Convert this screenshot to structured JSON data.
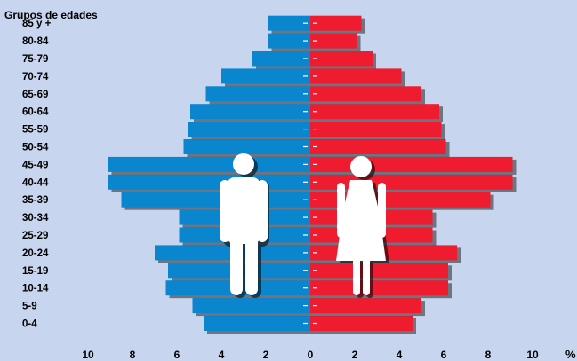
{
  "chart_data": {
    "type": "bar",
    "orientation": "horizontal",
    "layout": "population-pyramid",
    "ylabel": "Grupos de edades",
    "xlabel": "%",
    "categories": [
      "0-4",
      "5-9",
      "10-14",
      "15-19",
      "20-24",
      "25-29",
      "30-34",
      "35-39",
      "40-44",
      "45-49",
      "50-54",
      "55-59",
      "60-64",
      "65-69",
      "70-74",
      "75-79",
      "80-84",
      "85 y +"
    ],
    "series": [
      {
        "values": [
          4.8,
          5.3,
          6.5,
          6.4,
          7.0,
          5.9,
          5.9,
          8.5,
          9.1,
          9.1,
          5.7,
          5.5,
          5.4,
          4.7,
          4.0,
          2.6,
          1.9,
          1.9
        ],
        "color": "#0a86cf",
        "side": "left"
      },
      {
        "values": [
          4.6,
          5.0,
          6.2,
          6.2,
          6.6,
          5.5,
          5.5,
          8.1,
          9.1,
          9.1,
          6.1,
          5.9,
          5.8,
          5.0,
          4.1,
          2.8,
          2.1,
          2.3
        ],
        "color": "#ee1c2e",
        "side": "right"
      }
    ],
    "xticks": [
      10,
      8,
      6,
      4,
      2,
      0,
      2,
      4,
      6,
      8,
      10
    ],
    "xlim": [
      -10,
      10
    ],
    "grid": false,
    "icons": [
      "man-icon",
      "woman-icon"
    ],
    "background_color": "#c7d5ee"
  }
}
